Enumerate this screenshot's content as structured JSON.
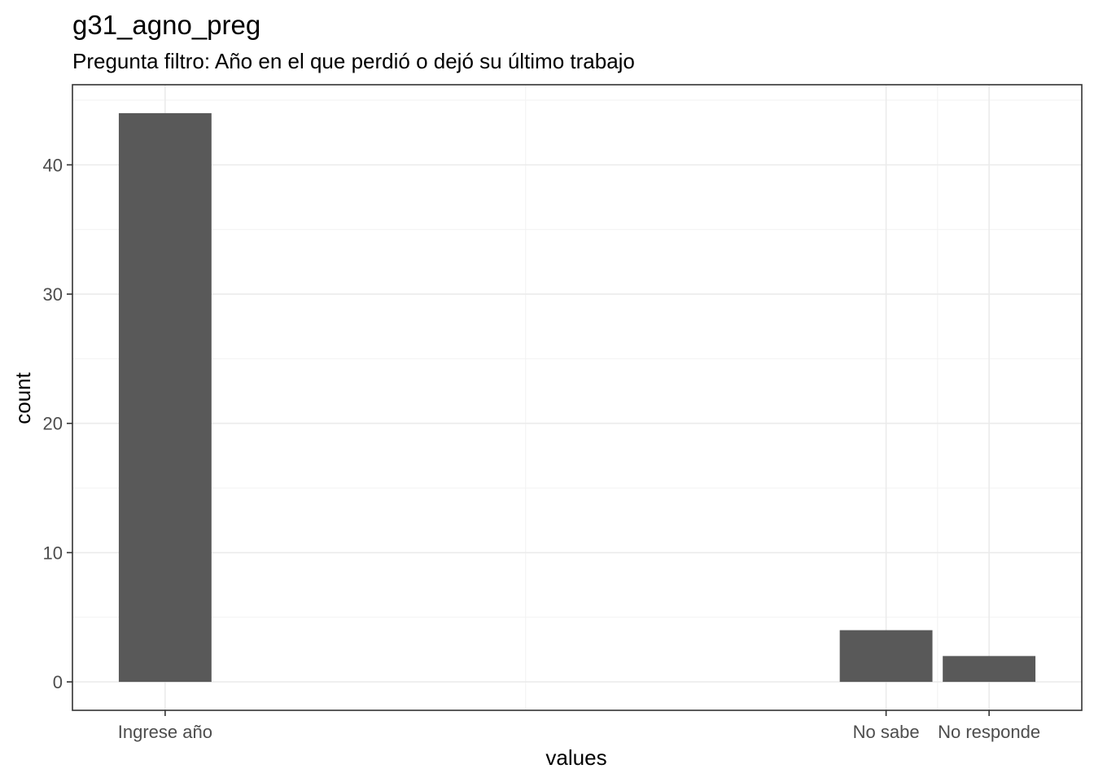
{
  "chart_data": {
    "type": "bar",
    "title": "g31_agno_preg",
    "subtitle": "Pregunta filtro: Año en el que perdió o dejó su último trabajo",
    "xlabel": "values",
    "ylabel": "count",
    "categories": [
      "Ingrese año",
      "No sabe",
      "No responde"
    ],
    "x_positions": [
      1,
      8,
      9
    ],
    "xlim": [
      0.1,
      9.9
    ],
    "values": [
      44,
      4,
      2
    ],
    "ylim": [
      -2.2,
      46.2
    ],
    "yticks": [
      0,
      10,
      20,
      30,
      40
    ],
    "bar_color": "#595959",
    "grid": true,
    "legend": "none"
  }
}
